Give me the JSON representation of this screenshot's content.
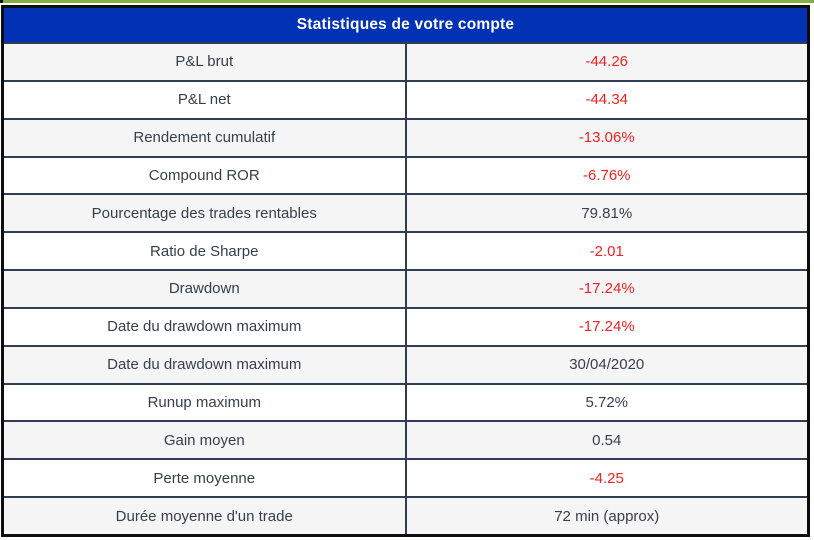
{
  "colors": {
    "top_strip": "#86ae3f",
    "outer_border": "#0d0d0d",
    "inner_border": "#2f3e52",
    "header_bg": "#0132b5",
    "header_text": "#ffffff",
    "text": "#37404a",
    "negative_value": "#f12222",
    "row_alt_bg": "#f5f5f6",
    "row_bg": "#ffffff"
  },
  "chart_data": {
    "type": "table",
    "title": "Statistiques de votre compte",
    "legend_position": "none",
    "grid": true,
    "rows": [
      {
        "label": "P&L brut",
        "value": "-44.26",
        "negative": true
      },
      {
        "label": "P&L net",
        "value": "-44.34",
        "negative": true
      },
      {
        "label": "Rendement cumulatif",
        "value": "-13.06%",
        "negative": true
      },
      {
        "label": "Compound ROR",
        "value": "-6.76%",
        "negative": true
      },
      {
        "label": "Pourcentage des trades rentables",
        "value": "79.81%",
        "negative": false
      },
      {
        "label": "Ratio de Sharpe",
        "value": "-2.01",
        "negative": true
      },
      {
        "label": "Drawdown",
        "value": "-17.24%",
        "negative": true
      },
      {
        "label": "Date du drawdown maximum",
        "value": "-17.24%",
        "negative": true
      },
      {
        "label": "Date du drawdown maximum",
        "value": "30/04/2020",
        "negative": false
      },
      {
        "label": "Runup maximum",
        "value": "5.72%",
        "negative": false
      },
      {
        "label": "Gain moyen",
        "value": "0.54",
        "negative": false
      },
      {
        "label": "Perte moyenne",
        "value": "-4.25",
        "negative": true
      },
      {
        "label": "Durée moyenne d'un trade",
        "value": "72 min (approx)",
        "negative": false
      }
    ]
  }
}
